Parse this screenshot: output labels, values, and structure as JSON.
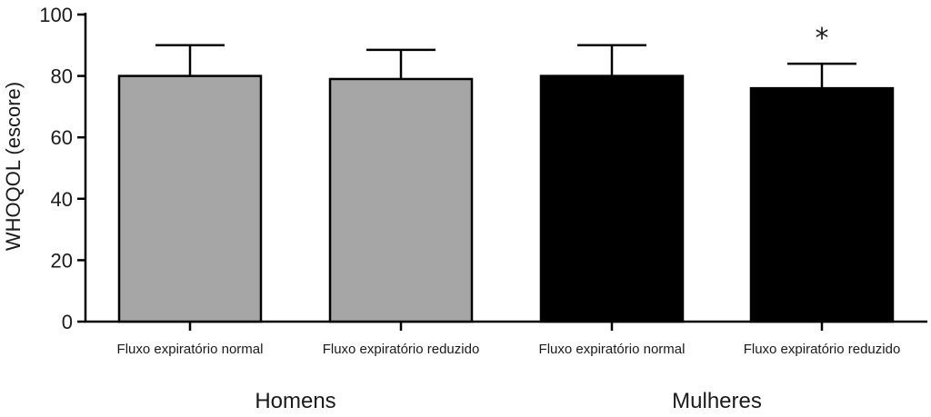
{
  "chart_data": {
    "type": "bar",
    "title": "",
    "ylabel": "WHOQOL (escore)",
    "xlabel": "",
    "ylim": [
      0,
      100
    ],
    "yticks": [
      0,
      20,
      40,
      60,
      80,
      100
    ],
    "grid": false,
    "categories": [
      "Fluxo expiratório normal",
      "Fluxo expiratório reduzido",
      "Fluxo expiratório normal",
      "Fluxo expiratório reduzido"
    ],
    "values": [
      80,
      79,
      80,
      76
    ],
    "error_upper": [
      90,
      88.5,
      90,
      84
    ],
    "groups": [
      {
        "label": "Homens",
        "category_indices": [
          0,
          1
        ]
      },
      {
        "label": "Mulheres",
        "category_indices": [
          2,
          3
        ]
      }
    ],
    "bar_colors": [
      "#a6a6a6",
      "#a6a6a6",
      "#000000",
      "#000000"
    ],
    "annotations": [
      {
        "category_index": 3,
        "text": "*"
      }
    ]
  }
}
